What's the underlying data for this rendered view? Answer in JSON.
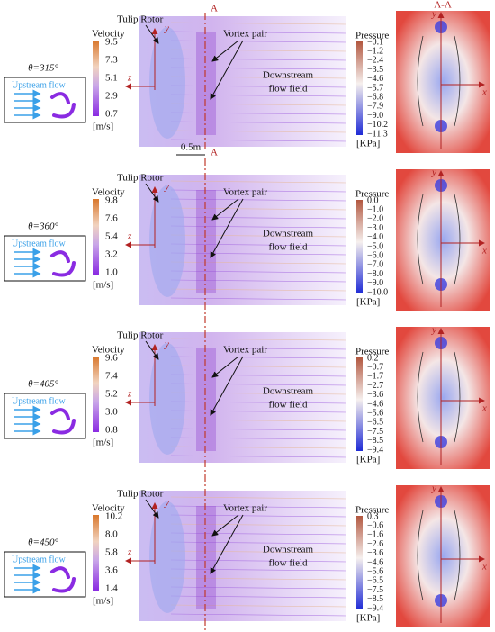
{
  "section": {
    "a_top": "A",
    "a_bottom": "A",
    "scale": "0.5m",
    "label": "A-A"
  },
  "rows": [
    {
      "theta": "θ=315°",
      "inset_label": "Upstream flow",
      "tulip_rotor": "Tulip Rotor",
      "vortex_pair": "Vortex pair",
      "downstream": [
        "Downstream",
        "flow field"
      ],
      "flow_axes": [
        "y",
        "z"
      ],
      "pressure_axes": [
        "y",
        "x"
      ],
      "velocity": {
        "title": "Velocity",
        "ticks": [
          "9.5",
          "7.3",
          "5.1",
          "2.9",
          "0.7"
        ],
        "unit": "[m/s]"
      },
      "pressure": {
        "title": "Pressure",
        "ticks": [
          "−0.1",
          "−1.2",
          "−2.4",
          "−3.5",
          "−4.6",
          "−5.7",
          "−6.8",
          "−7.9",
          "−9.0",
          "−10.2",
          "−11.3"
        ],
        "unit": "[KPa]"
      }
    },
    {
      "theta": "θ=360°",
      "inset_label": "Upstream flow",
      "tulip_rotor": "Tulip Rotor",
      "vortex_pair": "Vortex pair",
      "downstream": [
        "Downstream",
        "flow field"
      ],
      "flow_axes": [
        "y",
        "z"
      ],
      "pressure_axes": [
        "y",
        "x"
      ],
      "velocity": {
        "title": "Velocity",
        "ticks": [
          "9.8",
          "7.6",
          "5.4",
          "3.2",
          "1.0"
        ],
        "unit": "[m/s]"
      },
      "pressure": {
        "title": "Pressure",
        "ticks": [
          "0.0",
          "−1.0",
          "−2.0",
          "−3.0",
          "−4.0",
          "−5.0",
          "−6.0",
          "−7.0",
          "−8.0",
          "−9.0",
          "−10.0"
        ],
        "unit": "[KPa]"
      }
    },
    {
      "theta": "θ=405°",
      "inset_label": "Upstream flow",
      "tulip_rotor": "Tulip Rotor",
      "vortex_pair": "Vortex pair",
      "downstream": [
        "Downstream",
        "flow field"
      ],
      "flow_axes": [
        "y",
        "z"
      ],
      "pressure_axes": [
        "y",
        "x"
      ],
      "velocity": {
        "title": "Velocity",
        "ticks": [
          "9.6",
          "7.4",
          "5.2",
          "3.0",
          "0.8"
        ],
        "unit": "[m/s]"
      },
      "pressure": {
        "title": "Pressure",
        "ticks": [
          "0.2",
          "−0.7",
          "−1.7",
          "−2.7",
          "−3.6",
          "−4.6",
          "−5.6",
          "−6.5",
          "−7.5",
          "−8.5",
          "−9.4"
        ],
        "unit": "[KPa]"
      }
    },
    {
      "theta": "θ=450°",
      "inset_label": "Upstream flow",
      "tulip_rotor": "Tulip Rotor",
      "vortex_pair": "Vortex pair",
      "downstream": [
        "Downstream",
        "flow field"
      ],
      "flow_axes": [
        "y",
        "z"
      ],
      "pressure_axes": [
        "y",
        "x"
      ],
      "velocity": {
        "title": "Velocity",
        "ticks": [
          "10.2",
          "8.0",
          "5.8",
          "3.6",
          "1.4"
        ],
        "unit": "[m/s]"
      },
      "pressure": {
        "title": "Pressure",
        "ticks": [
          "0.3",
          "−0.6",
          "−1.6",
          "−2.6",
          "−3.6",
          "−4.6",
          "−5.6",
          "−6.5",
          "−7.5",
          "−8.5",
          "−9.4"
        ],
        "unit": "[KPa]"
      }
    }
  ]
}
